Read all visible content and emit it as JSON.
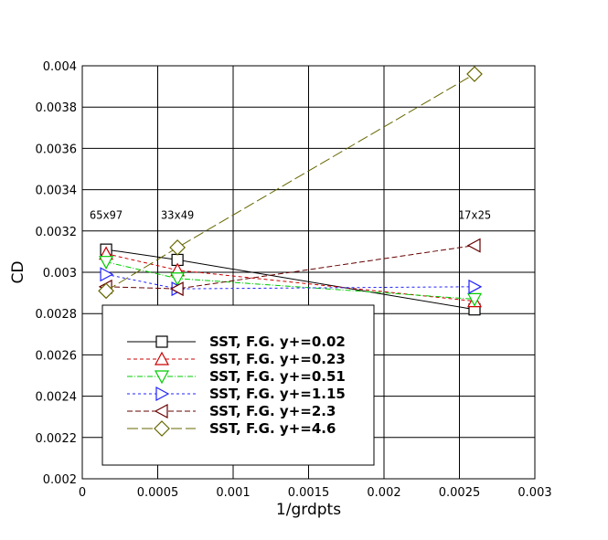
{
  "chart_data": {
    "type": "line",
    "xlabel": "1/grdpts",
    "ylabel": "CD",
    "xlim": [
      0,
      0.003
    ],
    "ylim": [
      0.002,
      0.004
    ],
    "x_ticks": [
      "0",
      "0.0005",
      "0.001",
      "0.0015",
      "0.002",
      "0.0025",
      "0.003"
    ],
    "x_tick_values": [
      0,
      0.0005,
      0.001,
      0.0015,
      0.002,
      0.0025,
      0.003
    ],
    "y_ticks": [
      "0.002",
      "0.0022",
      "0.0024",
      "0.0026",
      "0.0028",
      "0.003",
      "0.0032",
      "0.0034",
      "0.0036",
      "0.0038",
      "0.004"
    ],
    "y_tick_values": [
      0.002,
      0.0022,
      0.0024,
      0.0026,
      0.0028,
      0.003,
      0.0032,
      0.0034,
      0.0036,
      0.0038,
      0.004
    ],
    "grid": true,
    "legend_position": "lower-left",
    "annotations": [
      {
        "text": "65x97",
        "x": 0.000158,
        "y": 0.00325
      },
      {
        "text": "33x49",
        "x": 0.000631,
        "y": 0.00325
      },
      {
        "text": "17x25",
        "x": 0.0026,
        "y": 0.00325
      }
    ],
    "series": [
      {
        "name": "SST, F.G. y+=0.02",
        "color": "#000000",
        "marker": "square",
        "dash": "none",
        "x": [
          0.000158,
          0.000631,
          0.0026
        ],
        "y": [
          0.00311,
          0.00306,
          0.00282
        ]
      },
      {
        "name": "SST, F.G. y+=0.23",
        "color": "#cc0000",
        "marker": "triangle-up",
        "dash": "4,3",
        "x": [
          0.000158,
          0.000631,
          0.0026
        ],
        "y": [
          0.00309,
          0.00301,
          0.00286
        ]
      },
      {
        "name": "SST, F.G. y+=0.51",
        "color": "#00cc00",
        "marker": "triangle-down",
        "dash": "6,2,1,2",
        "x": [
          0.000158,
          0.000631,
          0.0026
        ],
        "y": [
          0.00305,
          0.00297,
          0.00287
        ]
      },
      {
        "name": "SST, F.G. y+=1.15",
        "color": "#2222ff",
        "marker": "triangle-right",
        "dash": "3,3",
        "x": [
          0.000158,
          0.000631,
          0.0026
        ],
        "y": [
          0.00299,
          0.00292,
          0.00293
        ]
      },
      {
        "name": "SST, F.G. y+=2.3",
        "color": "#660000",
        "marker": "triangle-left",
        "dash": "6,3",
        "x": [
          0.000158,
          0.000631,
          0.0026
        ],
        "y": [
          0.00293,
          0.00292,
          0.00313
        ]
      },
      {
        "name": "SST, F.G. y+=4.6",
        "color": "#666600",
        "marker": "diamond",
        "dash": "12,4",
        "x": [
          0.000158,
          0.000631,
          0.0026
        ],
        "y": [
          0.00291,
          0.00312,
          0.00396
        ]
      }
    ]
  }
}
